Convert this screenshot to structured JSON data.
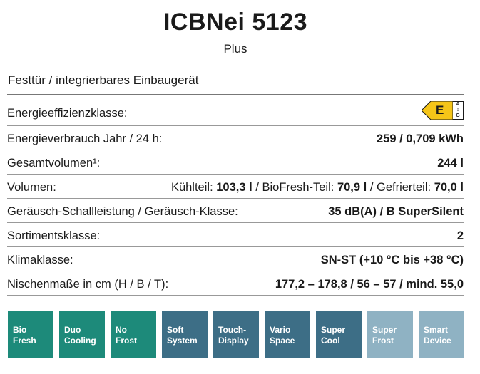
{
  "header": {
    "title": "ICBNei 5123",
    "subtitle": "Plus"
  },
  "intro": "Festtür / integrierbares Einbaugerät",
  "rows": {
    "energy_class": {
      "label": "Energieeffizienzklasse:",
      "class": "E",
      "scale_top": "A",
      "scale_sep": "↕",
      "scale_bottom": "G",
      "color": "#f5c518"
    },
    "consumption": {
      "label": "Energieverbrauch Jahr / 24 h:",
      "value": "259 / 0,709 kWh"
    },
    "total_volume": {
      "label": "Gesamtvolumen¹:",
      "value": "244 l"
    },
    "volume": {
      "label": "Volumen:",
      "k_label": "Kühlteil:",
      "k_value": "103,3 l",
      "b_label": "/ BioFresh-Teil:",
      "b_value": "70,9 l",
      "g_label": "/ Gefrierteil:",
      "g_value": "70,0 l"
    },
    "noise": {
      "label": "Geräusch-Schallleistung / Geräusch-Klasse:",
      "value": "35 dB(A) / B SuperSilent"
    },
    "assortment": {
      "label": "Sortimentsklasse:",
      "value": "2"
    },
    "climate": {
      "label": "Klimaklasse:",
      "value": "SN-ST (+10 °C bis +38 °C)"
    },
    "niche": {
      "label": "Nischenmaße in cm (H / B / T):",
      "value": "177,2 – 178,8 / 56 – 57 / mind. 55,0"
    }
  },
  "features": [
    {
      "line1": "Bio",
      "line2": "Fresh",
      "color": "#1d8a7a"
    },
    {
      "line1": "Duo",
      "line2": "Cooling",
      "color": "#1d8a7a"
    },
    {
      "line1": "No",
      "line2": "Frost",
      "color": "#1d8a7a"
    },
    {
      "line1": "Soft",
      "line2": "System",
      "color": "#3d6e86"
    },
    {
      "line1": "Touch-",
      "line2": "Display",
      "color": "#3d6e86"
    },
    {
      "line1": "Vario",
      "line2": "Space",
      "color": "#3d6e86"
    },
    {
      "line1": "Super",
      "line2": "Cool",
      "color": "#3d6e86"
    },
    {
      "line1": "Super",
      "line2": "Frost",
      "color": "#8fb2c3"
    },
    {
      "line1": "Smart",
      "line2": "Device",
      "color": "#8fb2c3"
    }
  ]
}
